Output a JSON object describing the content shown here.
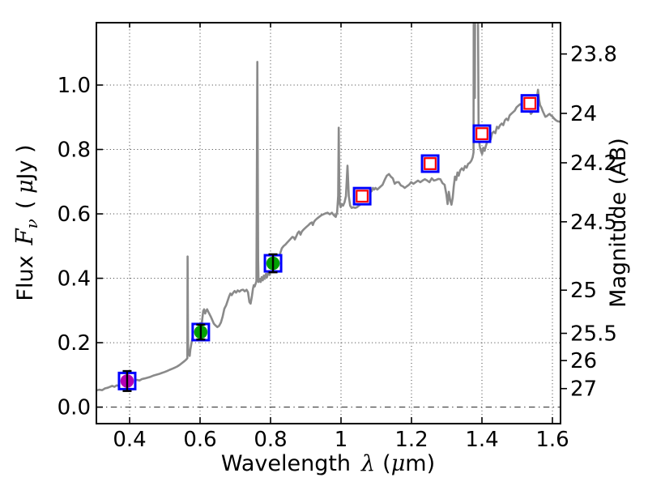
{
  "labels": {
    "xlabel": {
      "word": "Wavelength",
      "sym": "λ",
      "unit_open": "(",
      "mu": "μ",
      "unit_close": "m)"
    },
    "ylabel_left": {
      "word": "Flux",
      "sym": "F",
      "sub": "ν",
      "paren_open": "( ",
      "mu": "μ",
      "unit": "Jy )"
    },
    "ylabel_right": "Magnitude (AB)"
  },
  "colors": {
    "spectrum": "#8a8a8a",
    "frame_square": "#0000ff",
    "inner_square": "#ff0000",
    "circle_magenta": "#b400b4",
    "circle_green": "#00a000",
    "errorbar": "#000000",
    "grid": "#3a3a3a",
    "spine": "#000000",
    "background": "#ffffff"
  },
  "chart_data": {
    "type": "line+scatter",
    "title": "",
    "xlabel": "Wavelength λ (μm)",
    "ylabel_left": "Flux Fν ( μJy )",
    "ylabel_right": "Magnitude (AB)",
    "xlim": [
      0.306,
      1.623
    ],
    "ylim": [
      -0.051,
      1.194
    ],
    "grid": "dotted, at major flux and wavelength ticks; dash-dot line at flux 0",
    "x_ticks": [
      {
        "v": 0.4,
        "t": "0.4"
      },
      {
        "v": 0.6,
        "t": "0.6"
      },
      {
        "v": 0.8,
        "t": "0.8"
      },
      {
        "v": 1.0,
        "t": "1"
      },
      {
        "v": 1.2,
        "t": "1.2"
      },
      {
        "v": 1.4,
        "t": "1.4"
      },
      {
        "v": 1.6,
        "t": "1.6"
      }
    ],
    "y_left_ticks": [
      {
        "v": 0.0,
        "t": "0.0"
      },
      {
        "v": 0.2,
        "t": "0.2"
      },
      {
        "v": 0.4,
        "t": "0.4"
      },
      {
        "v": 0.6,
        "t": "0.6"
      },
      {
        "v": 0.8,
        "t": "0.8"
      },
      {
        "v": 1.0,
        "t": "1.0"
      }
    ],
    "y_right_ticks": [
      {
        "t": "23.8",
        "flux": 1.0965
      },
      {
        "t": "24",
        "flux": 0.912
      },
      {
        "t": "24.2",
        "flux": 0.7586
      },
      {
        "t": "24.5",
        "flux": 0.5754
      },
      {
        "t": "25",
        "flux": 0.3631
      },
      {
        "t": "25.5",
        "flux": 0.2291
      },
      {
        "t": "26",
        "flux": 0.1445
      },
      {
        "t": "27",
        "flux": 0.0575
      }
    ],
    "photometry": [
      {
        "x": 0.393,
        "y": 0.081,
        "yerr": 0.031,
        "marker": "filled-circle",
        "fill": "magenta"
      },
      {
        "x": 0.602,
        "y": 0.233,
        "yerr": 0.023,
        "marker": "filled-circle",
        "fill": "green"
      },
      {
        "x": 0.807,
        "y": 0.4465,
        "yerr": 0.028,
        "marker": "filled-circle",
        "fill": "green"
      },
      {
        "x": 1.06,
        "y": 0.655,
        "marker": "open-square",
        "fill": "none"
      },
      {
        "x": 1.253,
        "y": 0.756,
        "marker": "open-square",
        "fill": "none"
      },
      {
        "x": 1.4,
        "y": 0.849,
        "marker": "open-square",
        "fill": "none"
      },
      {
        "x": 1.536,
        "y": 0.943,
        "marker": "open-square",
        "fill": "none"
      }
    ],
    "spectrum": [
      [
        0.306,
        0.052
      ],
      [
        0.314,
        0.054
      ],
      [
        0.322,
        0.0525
      ],
      [
        0.33,
        0.058
      ],
      [
        0.338,
        0.06
      ],
      [
        0.345,
        0.0635
      ],
      [
        0.351,
        0.066
      ],
      [
        0.357,
        0.063
      ],
      [
        0.363,
        0.0675
      ],
      [
        0.37,
        0.066
      ],
      [
        0.377,
        0.07
      ],
      [
        0.384,
        0.0725
      ],
      [
        0.391,
        0.076
      ],
      [
        0.398,
        0.0785
      ],
      [
        0.406,
        0.08
      ],
      [
        0.414,
        0.0825
      ],
      [
        0.421,
        0.0845
      ],
      [
        0.428,
        0.0825
      ],
      [
        0.435,
        0.087
      ],
      [
        0.443,
        0.089
      ],
      [
        0.451,
        0.0915
      ],
      [
        0.459,
        0.094
      ],
      [
        0.467,
        0.0975
      ],
      [
        0.475,
        0.1
      ],
      [
        0.483,
        0.1025
      ],
      [
        0.491,
        0.106
      ],
      [
        0.499,
        0.109
      ],
      [
        0.507,
        0.1125
      ],
      [
        0.514,
        0.116
      ],
      [
        0.521,
        0.119
      ],
      [
        0.528,
        0.1225
      ],
      [
        0.535,
        0.126
      ],
      [
        0.542,
        0.131
      ],
      [
        0.549,
        0.137
      ],
      [
        0.556,
        0.143
      ],
      [
        0.561,
        0.148
      ],
      [
        0.5638,
        0.152
      ],
      [
        0.5645,
        0.4675
      ],
      [
        0.5655,
        0.26
      ],
      [
        0.566,
        0.19
      ],
      [
        0.5672,
        0.163
      ],
      [
        0.569,
        0.172
      ],
      [
        0.5705,
        0.159
      ],
      [
        0.5725,
        0.178
      ],
      [
        0.575,
        0.195
      ],
      [
        0.578,
        0.212
      ],
      [
        0.581,
        0.226
      ],
      [
        0.584,
        0.222
      ],
      [
        0.587,
        0.23
      ],
      [
        0.59,
        0.2275
      ],
      [
        0.593,
        0.2325
      ],
      [
        0.5965,
        0.2305
      ],
      [
        0.6,
        0.2335
      ],
      [
        0.6035,
        0.245
      ],
      [
        0.6065,
        0.2755
      ],
      [
        0.609,
        0.2985
      ],
      [
        0.6115,
        0.3035
      ],
      [
        0.6145,
        0.2905
      ],
      [
        0.617,
        0.2985
      ],
      [
        0.62,
        0.3035
      ],
      [
        0.6235,
        0.2955
      ],
      [
        0.627,
        0.2885
      ],
      [
        0.631,
        0.2795
      ],
      [
        0.635,
        0.2695
      ],
      [
        0.639,
        0.259
      ],
      [
        0.644,
        0.2535
      ],
      [
        0.649,
        0.2485
      ],
      [
        0.654,
        0.2525
      ],
      [
        0.659,
        0.2625
      ],
      [
        0.664,
        0.2805
      ],
      [
        0.669,
        0.3055
      ],
      [
        0.674,
        0.3165
      ],
      [
        0.678,
        0.329
      ],
      [
        0.682,
        0.3425
      ],
      [
        0.686,
        0.3525
      ],
      [
        0.69,
        0.3475
      ],
      [
        0.694,
        0.3555
      ],
      [
        0.698,
        0.3605
      ],
      [
        0.702,
        0.3555
      ],
      [
        0.707,
        0.3625
      ],
      [
        0.712,
        0.3585
      ],
      [
        0.717,
        0.3635
      ],
      [
        0.722,
        0.3645
      ],
      [
        0.727,
        0.3595
      ],
      [
        0.732,
        0.3645
      ],
      [
        0.736,
        0.3565
      ],
      [
        0.74,
        0.3265
      ],
      [
        0.7435,
        0.3215
      ],
      [
        0.747,
        0.3425
      ],
      [
        0.75,
        0.3675
      ],
      [
        0.7525,
        0.3785
      ],
      [
        0.755,
        0.3745
      ],
      [
        0.7575,
        0.3825
      ],
      [
        0.76,
        0.3905
      ],
      [
        0.7625,
        1.072
      ],
      [
        0.7648,
        0.455
      ],
      [
        0.766,
        0.3885
      ],
      [
        0.769,
        0.3985
      ],
      [
        0.772,
        0.3885
      ],
      [
        0.775,
        0.4035
      ],
      [
        0.778,
        0.3935
      ],
      [
        0.781,
        0.4085
      ],
      [
        0.784,
        0.3985
      ],
      [
        0.787,
        0.4135
      ],
      [
        0.79,
        0.4035
      ],
      [
        0.7935,
        0.4215
      ],
      [
        0.797,
        0.4105
      ],
      [
        0.8,
        0.4285
      ],
      [
        0.8035,
        0.4205
      ],
      [
        0.807,
        0.4385
      ],
      [
        0.8105,
        0.4435
      ],
      [
        0.814,
        0.4485
      ],
      [
        0.818,
        0.4535
      ],
      [
        0.822,
        0.4605
      ],
      [
        0.827,
        0.4755
      ],
      [
        0.832,
        0.493
      ],
      [
        0.837,
        0.5
      ],
      [
        0.842,
        0.5045
      ],
      [
        0.847,
        0.5105
      ],
      [
        0.852,
        0.5165
      ],
      [
        0.857,
        0.5225
      ],
      [
        0.862,
        0.5285
      ],
      [
        0.8655,
        0.527
      ],
      [
        0.869,
        0.5205
      ],
      [
        0.873,
        0.5305
      ],
      [
        0.877,
        0.5405
      ],
      [
        0.881,
        0.5455
      ],
      [
        0.885,
        0.5355
      ],
      [
        0.889,
        0.5455
      ],
      [
        0.893,
        0.5505
      ],
      [
        0.898,
        0.5555
      ],
      [
        0.903,
        0.5605
      ],
      [
        0.908,
        0.5655
      ],
      [
        0.9125,
        0.5705
      ],
      [
        0.917,
        0.5735
      ],
      [
        0.92,
        0.5655
      ],
      [
        0.9235,
        0.5755
      ],
      [
        0.927,
        0.5805
      ],
      [
        0.932,
        0.5855
      ],
      [
        0.938,
        0.5905
      ],
      [
        0.944,
        0.5955
      ],
      [
        0.95,
        0.5985
      ],
      [
        0.956,
        0.6015
      ],
      [
        0.962,
        0.6035
      ],
      [
        0.968,
        0.5985
      ],
      [
        0.974,
        0.6035
      ],
      [
        0.98,
        0.5955
      ],
      [
        0.985,
        0.5905
      ],
      [
        0.989,
        0.6055
      ],
      [
        0.992,
        0.6555
      ],
      [
        0.9935,
        0.8675
      ],
      [
        0.995,
        0.7
      ],
      [
        0.9965,
        0.6305
      ],
      [
        0.999,
        0.6205
      ],
      [
        1.002,
        0.6305
      ],
      [
        1.006,
        0.6255
      ],
      [
        1.01,
        0.6355
      ],
      [
        1.014,
        0.6555
      ],
      [
        1.0185,
        0.7495
      ],
      [
        1.022,
        0.6555
      ],
      [
        1.026,
        0.6255
      ],
      [
        1.03,
        0.6185
      ],
      [
        1.035,
        0.6205
      ],
      [
        1.04,
        0.6185
      ],
      [
        1.045,
        0.6205
      ],
      [
        1.051,
        0.6255
      ],
      [
        1.057,
        0.6305
      ],
      [
        1.063,
        0.6355
      ],
      [
        1.069,
        0.6455
      ],
      [
        1.075,
        0.6555
      ],
      [
        1.081,
        0.6655
      ],
      [
        1.087,
        0.6705
      ],
      [
        1.0905,
        0.6805
      ],
      [
        1.094,
        0.6755
      ],
      [
        1.098,
        0.6805
      ],
      [
        1.103,
        0.6755
      ],
      [
        1.108,
        0.6805
      ],
      [
        1.113,
        0.6855
      ],
      [
        1.118,
        0.6905
      ],
      [
        1.124,
        0.7055
      ],
      [
        1.13,
        0.7185
      ],
      [
        1.136,
        0.7235
      ],
      [
        1.1415,
        0.7155
      ],
      [
        1.147,
        0.7105
      ],
      [
        1.1525,
        0.6935
      ],
      [
        1.158,
        0.6985
      ],
      [
        1.164,
        0.6985
      ],
      [
        1.17,
        0.6885
      ],
      [
        1.1755,
        0.6855
      ],
      [
        1.181,
        0.6805
      ],
      [
        1.187,
        0.6855
      ],
      [
        1.193,
        0.6905
      ],
      [
        1.199,
        0.6985
      ],
      [
        1.2055,
        0.6935
      ],
      [
        1.212,
        0.6985
      ],
      [
        1.2185,
        0.7035
      ],
      [
        1.225,
        0.6985
      ],
      [
        1.2315,
        0.7035
      ],
      [
        1.238,
        0.7075
      ],
      [
        1.2445,
        0.7035
      ],
      [
        1.251,
        0.6985
      ],
      [
        1.2575,
        0.7105
      ],
      [
        1.264,
        0.7035
      ],
      [
        1.27,
        0.7055
      ],
      [
        1.276,
        0.7085
      ],
      [
        1.282,
        0.7075
      ],
      [
        1.288,
        0.6955
      ],
      [
        1.294,
        0.6905
      ],
      [
        1.299,
        0.6605
      ],
      [
        1.3025,
        0.6305
      ],
      [
        1.306,
        0.6685
      ],
      [
        1.31,
        0.6405
      ],
      [
        1.3135,
        0.6285
      ],
      [
        1.317,
        0.6505
      ],
      [
        1.32,
        0.6855
      ],
      [
        1.3235,
        0.7155
      ],
      [
        1.327,
        0.7055
      ],
      [
        1.3305,
        0.7285
      ],
      [
        1.334,
        0.7185
      ],
      [
        1.3385,
        0.7355
      ],
      [
        1.343,
        0.7415
      ],
      [
        1.3475,
        0.7355
      ],
      [
        1.352,
        0.7485
      ],
      [
        1.3565,
        0.7435
      ],
      [
        1.361,
        0.7555
      ],
      [
        1.3655,
        0.7585
      ],
      [
        1.37,
        0.7655
      ],
      [
        1.3735,
        0.7755
      ],
      [
        1.376,
        0.7905
      ],
      [
        1.3762,
        0.795
      ],
      [
        1.3768,
        1.35
      ],
      [
        1.379,
        1.35
      ],
      [
        1.3798,
        0.96
      ],
      [
        1.3808,
        1.35
      ],
      [
        1.388,
        1.35
      ],
      [
        1.3905,
        0.845
      ],
      [
        1.3935,
        0.8105
      ],
      [
        1.397,
        0.7955
      ],
      [
        1.4005,
        0.7855
      ],
      [
        1.404,
        0.8055
      ],
      [
        1.4075,
        0.7955
      ],
      [
        1.411,
        0.8105
      ],
      [
        1.4155,
        0.8255
      ],
      [
        1.42,
        0.8355
      ],
      [
        1.4245,
        0.8305
      ],
      [
        1.429,
        0.8505
      ],
      [
        1.4335,
        0.8555
      ],
      [
        1.438,
        0.8505
      ],
      [
        1.4425,
        0.8705
      ],
      [
        1.447,
        0.8655
      ],
      [
        1.4515,
        0.8755
      ],
      [
        1.456,
        0.8805
      ],
      [
        1.4605,
        0.8755
      ],
      [
        1.465,
        0.8905
      ],
      [
        1.4695,
        0.8955
      ],
      [
        1.474,
        0.8905
      ],
      [
        1.4785,
        0.9055
      ],
      [
        1.483,
        0.9105
      ],
      [
        1.488,
        0.9155
      ],
      [
        1.493,
        0.9205
      ],
      [
        1.498,
        0.9305
      ],
      [
        1.503,
        0.9355
      ],
      [
        1.508,
        0.9405
      ],
      [
        1.513,
        0.9375
      ],
      [
        1.518,
        0.9425
      ],
      [
        1.523,
        0.9405
      ],
      [
        1.528,
        0.9455
      ],
      [
        1.532,
        0.9425
      ],
      [
        1.5355,
        0.9205
      ],
      [
        1.539,
        0.9105
      ],
      [
        1.5425,
        0.9155
      ],
      [
        1.546,
        0.9255
      ],
      [
        1.5495,
        0.9325
      ],
      [
        1.553,
        0.9405
      ],
      [
        1.556,
        0.9605
      ],
      [
        1.559,
        0.9855
      ],
      [
        1.562,
        0.9555
      ],
      [
        1.565,
        0.9375
      ],
      [
        1.5685,
        0.9305
      ],
      [
        1.572,
        0.9205
      ],
      [
        1.576,
        0.9105
      ],
      [
        1.58,
        0.9015
      ],
      [
        1.584,
        0.9035
      ],
      [
        1.588,
        0.9075
      ],
      [
        1.592,
        0.9105
      ],
      [
        1.596,
        0.9055
      ],
      [
        1.6,
        0.9025
      ],
      [
        1.605,
        0.8955
      ],
      [
        1.61,
        0.8905
      ],
      [
        1.615,
        0.8875
      ],
      [
        1.623,
        0.8855
      ]
    ]
  }
}
